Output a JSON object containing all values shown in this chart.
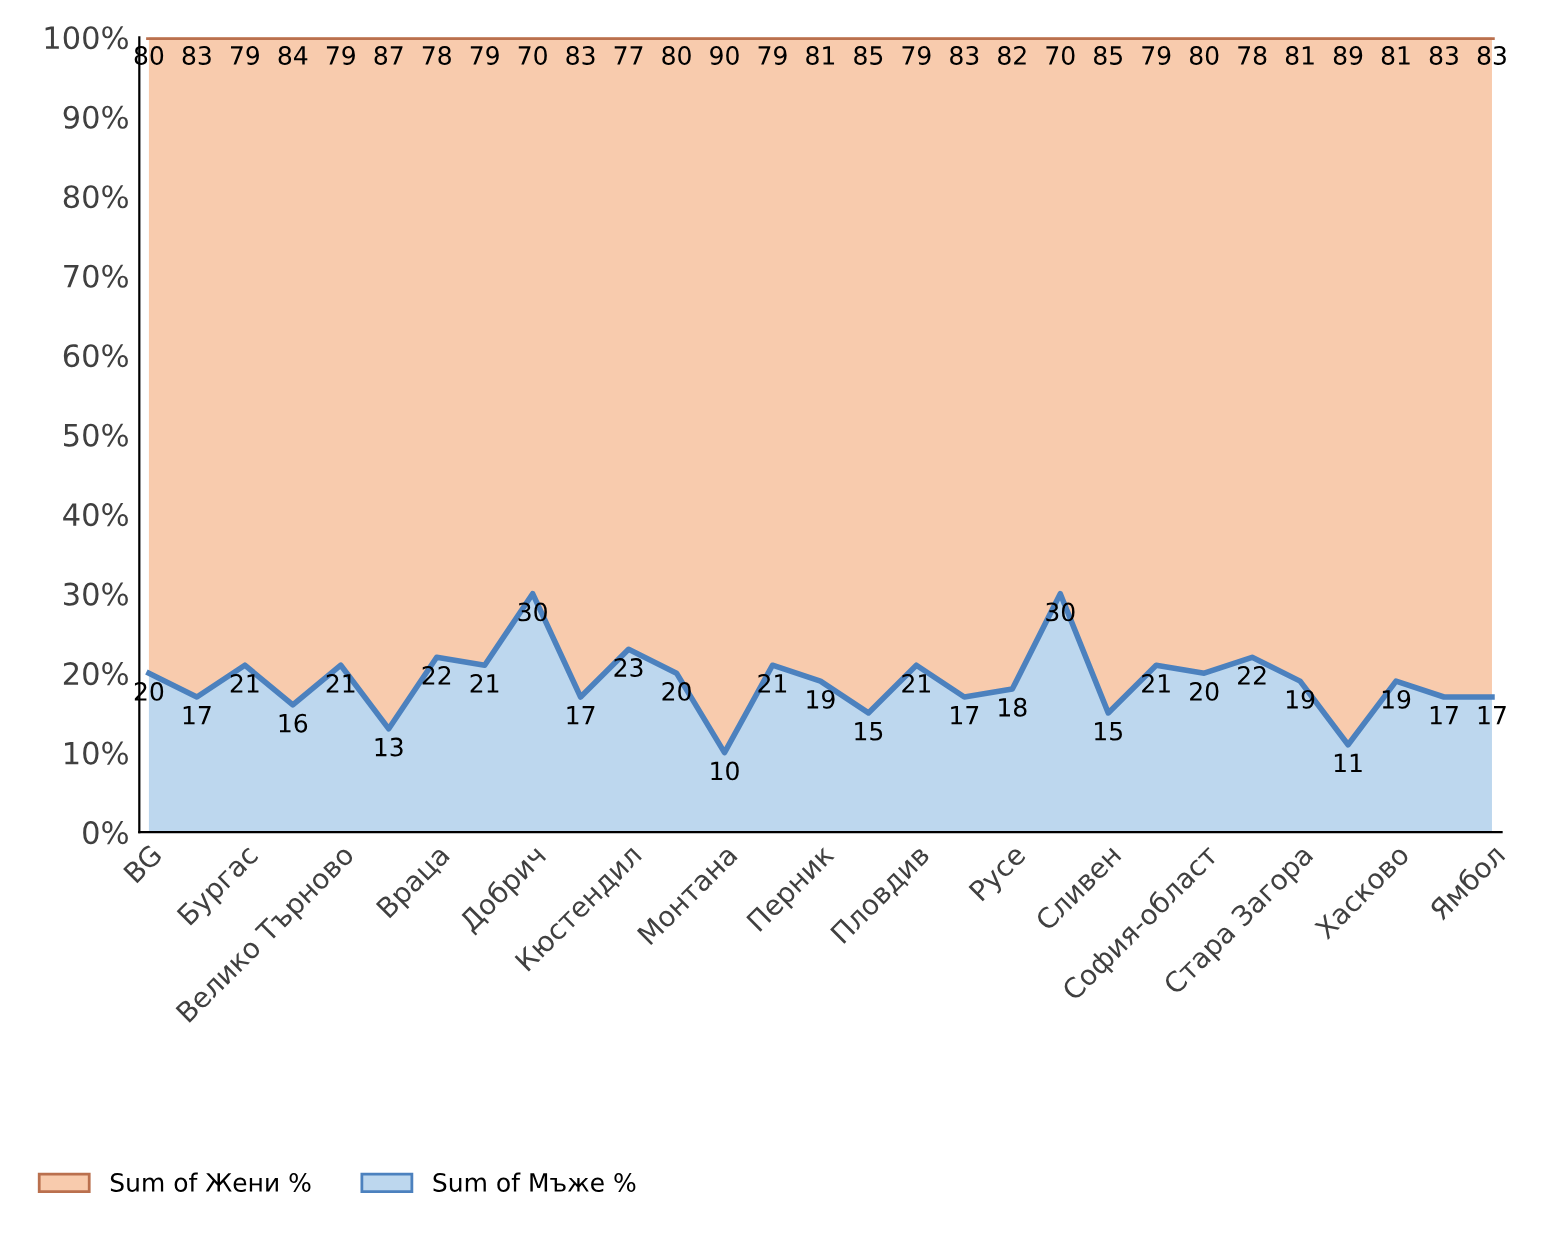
{
  "chart_data": {
    "type": "area",
    "stacked": true,
    "data_labels": true,
    "legend": "bottom left",
    "grid": false,
    "categories": [
      "BG",
      null,
      "Бургас",
      null,
      "Велико Търново",
      null,
      "Враца",
      null,
      "Добрич",
      null,
      "Кюстендил",
      null,
      "Монтана",
      null,
      "Перник",
      null,
      "Пловдив",
      null,
      "Русе",
      null,
      "Сливен",
      null,
      "София-област",
      null,
      "Стара Загора",
      null,
      "Хасково",
      null,
      "Ямбол"
    ],
    "series": [
      {
        "name": "Sum of Мъже %",
        "color": "#bdd7ee",
        "values": [
          20,
          17,
          21,
          16,
          21,
          13,
          22,
          21,
          30,
          17,
          23,
          20,
          10,
          21,
          19,
          15,
          21,
          17,
          18,
          30,
          15,
          21,
          20,
          22,
          19,
          11,
          19,
          17,
          17
        ]
      },
      {
        "name": "Sum of Жени %",
        "color": "#f8cbad",
        "values": [
          80,
          83,
          79,
          84,
          79,
          87,
          78,
          79,
          70,
          83,
          77,
          80,
          90,
          79,
          81,
          85,
          79,
          83,
          82,
          70,
          85,
          79,
          80,
          78,
          81,
          89,
          81,
          83,
          83
        ]
      }
    ],
    "ylim": [
      0,
      100
    ],
    "yticks": [
      {
        "value": 0,
        "label": "0%"
      },
      {
        "value": 10,
        "label": "10%"
      },
      {
        "value": 20,
        "label": "20%"
      },
      {
        "value": 30,
        "label": "30%"
      },
      {
        "value": 40,
        "label": "40%"
      },
      {
        "value": 50,
        "label": "50%"
      },
      {
        "value": 60,
        "label": "60%"
      },
      {
        "value": 70,
        "label": "70%"
      },
      {
        "value": 80,
        "label": "80%"
      },
      {
        "value": 90,
        "label": "90%"
      },
      {
        "value": 100,
        "label": "100%"
      }
    ]
  }
}
